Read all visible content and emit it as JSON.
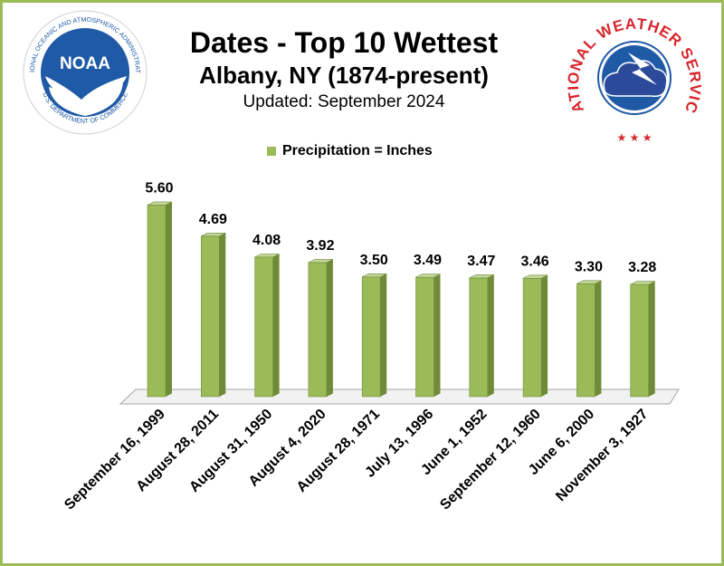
{
  "header": {
    "title": "Dates - Top 10 Wettest",
    "subtitle": "Albany, NY (1874-present)",
    "updated": "Updated:  September 2024"
  },
  "logos": {
    "noaa_text": "NOAA",
    "noaa_ring": "NATIONAL OCEANIC AND ATMOSPHERIC ADMINISTRATION",
    "noaa_bottom": "U.S. DEPARTMENT OF COMMERCE",
    "nws_ring": "NATIONAL WEATHER SERVICE"
  },
  "colors": {
    "bar": "#9bbb59",
    "bar_side": "#6f8b37",
    "bar_top": "#c3d69b",
    "border": "#9bbb59",
    "noaa_blue": "#1f5aa6",
    "nws_red": "#d7262c"
  },
  "chart_data": {
    "type": "bar",
    "title": "Dates - Top 10 Wettest",
    "subtitle": "Albany, NY (1874-present)",
    "legend": "Precipitation = Inches",
    "legend_position": "top",
    "grid": false,
    "categories": [
      "September 16, 1999",
      "August 28, 2011",
      "August 31, 1950",
      "August 4, 2020",
      "August 28, 1971",
      "July  13, 1996",
      "June  1, 1952",
      "September 12, 1960",
      "June 6, 2000",
      "November 3, 1927"
    ],
    "values": [
      5.6,
      4.69,
      4.08,
      3.92,
      3.5,
      3.49,
      3.47,
      3.46,
      3.3,
      3.28
    ],
    "value_labels": [
      "5.60",
      "4.69",
      "4.08",
      "3.92",
      "3.50",
      "3.49",
      "3.47",
      "3.46",
      "3.30",
      "3.28"
    ],
    "ylim": [
      0,
      6.3
    ]
  }
}
